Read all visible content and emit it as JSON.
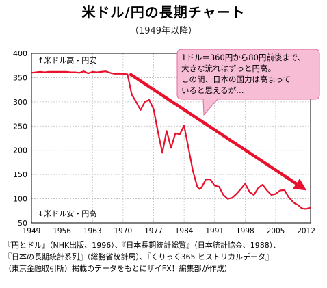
{
  "title": "米ドル/円の長期チャート",
  "subtitle": "（1949年以降）",
  "colors": {
    "series": "#e8112e",
    "trend_arrow": "#e8112e",
    "callout_fill": "#f7bdd5",
    "callout_border": "#e06a9a",
    "grid": "#bbbbbb"
  },
  "labels": {
    "top_note": "↑米ドル高・円安",
    "bottom_note": "↓米ドル安・円高"
  },
  "callout": {
    "lines": [
      "1ドル＝360円から80円前後まで、",
      "大きな流れはずっと円高。",
      "この間、日本の国力は高まって",
      "いると思えるが…"
    ]
  },
  "source": {
    "lines": [
      "『円とドル』（NHK出版、1996）、『日本長期統計総覧』（日本統計協会、1988）、",
      "『日本の長期統計系列』（総務省統計局）、『くりっく365 ヒストリカルデータ』",
      "（東京金融取引所）掲載のデータをもとにザイFX！編集部が作成）"
    ]
  },
  "chart_data": {
    "type": "line",
    "xlim": [
      1949,
      2013
    ],
    "ylim": [
      50,
      400
    ],
    "x_ticks": [
      "1949",
      "1956",
      "1963",
      "1970",
      "1977",
      "1984",
      "1991",
      "1998",
      "2005",
      "2012"
    ],
    "y_ticks": [
      "50",
      "100",
      "150",
      "200",
      "250",
      "300",
      "350",
      "400"
    ],
    "grid": true,
    "trend_arrow": {
      "from": [
        1971.5,
        358
      ],
      "to": [
        2012.5,
        115
      ]
    },
    "series": [
      {
        "values": [
          [
            1949,
            360
          ],
          [
            1950,
            361
          ],
          [
            1951,
            362
          ],
          [
            1952,
            361
          ],
          [
            1953,
            362
          ],
          [
            1954,
            362
          ],
          [
            1955,
            362
          ],
          [
            1956,
            362
          ],
          [
            1957,
            362
          ],
          [
            1958,
            361
          ],
          [
            1959,
            361
          ],
          [
            1960,
            360
          ],
          [
            1961,
            363
          ],
          [
            1962,
            359
          ],
          [
            1963,
            362
          ],
          [
            1964,
            361
          ],
          [
            1965,
            362
          ],
          [
            1966,
            363
          ],
          [
            1967,
            360
          ],
          [
            1968,
            358
          ],
          [
            1969,
            358
          ],
          [
            1970,
            358
          ],
          [
            1971,
            357
          ],
          [
            1972,
            315
          ],
          [
            1973,
            300
          ],
          [
            1974,
            283
          ],
          [
            1975,
            300
          ],
          [
            1976,
            304
          ],
          [
            1977,
            285
          ],
          [
            1978,
            238
          ],
          [
            1979,
            195
          ],
          [
            1980,
            240
          ],
          [
            1981,
            205
          ],
          [
            1982,
            235
          ],
          [
            1983,
            233
          ],
          [
            1984,
            251
          ],
          [
            1985,
            205
          ],
          [
            1986,
            158
          ],
          [
            1987,
            125
          ],
          [
            1987.5,
            120
          ],
          [
            1988,
            123
          ],
          [
            1989,
            140
          ],
          [
            1990,
            140
          ],
          [
            1991,
            127
          ],
          [
            1992,
            125
          ],
          [
            1993,
            108
          ],
          [
            1994,
            100
          ],
          [
            1995,
            102
          ],
          [
            1996,
            110
          ],
          [
            1997,
            120
          ],
          [
            1998,
            131
          ],
          [
            1999,
            114
          ],
          [
            2000,
            108
          ],
          [
            2001,
            122
          ],
          [
            2002,
            129
          ],
          [
            2003,
            117
          ],
          [
            2004,
            108
          ],
          [
            2005,
            110
          ],
          [
            2006,
            117
          ],
          [
            2007,
            118
          ],
          [
            2008,
            103
          ],
          [
            2009,
            93
          ],
          [
            2009.5,
            90
          ],
          [
            2010,
            88
          ],
          [
            2011,
            80
          ],
          [
            2012,
            79
          ],
          [
            2013,
            82
          ]
        ]
      }
    ]
  }
}
